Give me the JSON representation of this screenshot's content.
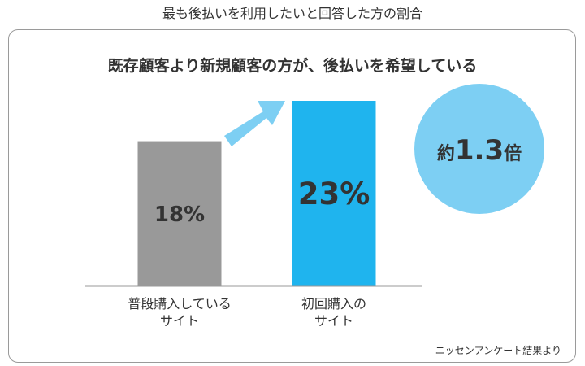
{
  "outer_title": "最も後払いを利用したいと回答した方の割合",
  "headline": "既存顧客より新規顧客の方が、後払いを希望している",
  "source_note": "ニッセンアンケート結果より",
  "badge": {
    "prefix": "約",
    "value": "1.3",
    "suffix": "倍"
  },
  "colors": {
    "bar_existing": "#999999",
    "bar_new": "#1fb4ee",
    "arrow": "#7dcff3",
    "badge_circle": "#7dcff3",
    "axis": "#999999"
  },
  "chart_data": {
    "type": "bar",
    "categories": [
      [
        "普段購入している",
        "サイト"
      ],
      [
        "初回購入の",
        "サイト"
      ]
    ],
    "values": [
      18,
      23
    ],
    "data_labels": [
      "18%",
      "23%"
    ],
    "unit": "%",
    "ylim": [
      0,
      23
    ]
  }
}
